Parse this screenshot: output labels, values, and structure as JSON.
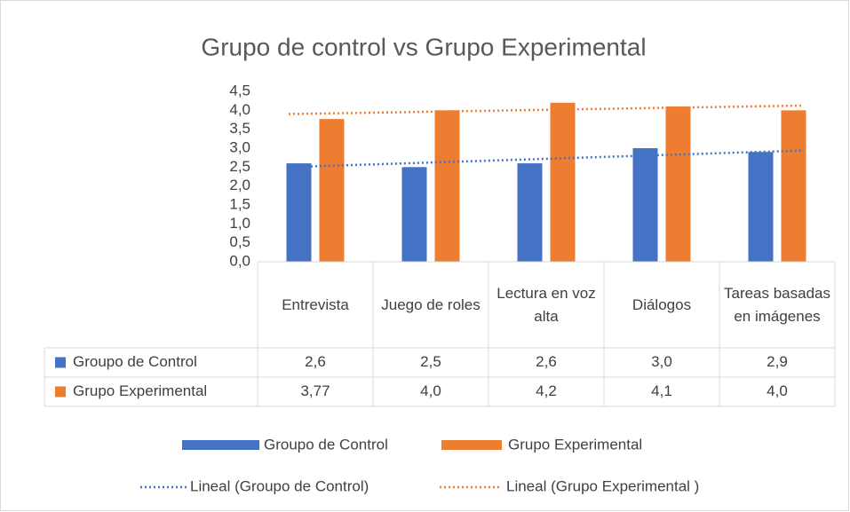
{
  "chart_data": {
    "type": "bar",
    "title": "Grupo de control vs Grupo Experimental",
    "categories": [
      "Entrevista",
      "Juego de roles",
      "Lectura en voz alta",
      "Diálogos",
      "Tareas basadas en imágenes"
    ],
    "series": [
      {
        "name": "Groupo de Control",
        "color": "#4472c4",
        "values": [
          2.6,
          2.5,
          2.6,
          3.0,
          2.9
        ],
        "value_labels": [
          "2,6",
          "2,5",
          "2,6",
          "3,0",
          "2,9"
        ],
        "trendline": {
          "name": "Lineal (Groupo de Control)",
          "style": "dotted"
        }
      },
      {
        "name": "Grupo Experimental",
        "color": "#ed7d31",
        "values": [
          3.77,
          4.0,
          4.2,
          4.1,
          4.0
        ],
        "value_labels": [
          "3,77",
          "4,0",
          "4,2",
          "4,1",
          "4,0"
        ],
        "trendline": {
          "name": "Lineal (Grupo Experimental )",
          "style": "dotted"
        }
      }
    ],
    "ylim": [
      0,
      4.5
    ],
    "yticks": [
      {
        "value": 0,
        "label": "0,0"
      },
      {
        "value": 0.5,
        "label": "0,5"
      },
      {
        "value": 1,
        "label": "1,0"
      },
      {
        "value": 1.5,
        "label": "1,5"
      },
      {
        "value": 2,
        "label": "2,0"
      },
      {
        "value": 2.5,
        "label": "2,5"
      },
      {
        "value": 3,
        "label": "3,0"
      },
      {
        "value": 3.5,
        "label": "3,5"
      },
      {
        "value": 4,
        "label": "4,0"
      },
      {
        "value": 4.5,
        "label": "4,5"
      }
    ],
    "grid": false,
    "data_table": true,
    "legend": "bottom"
  }
}
